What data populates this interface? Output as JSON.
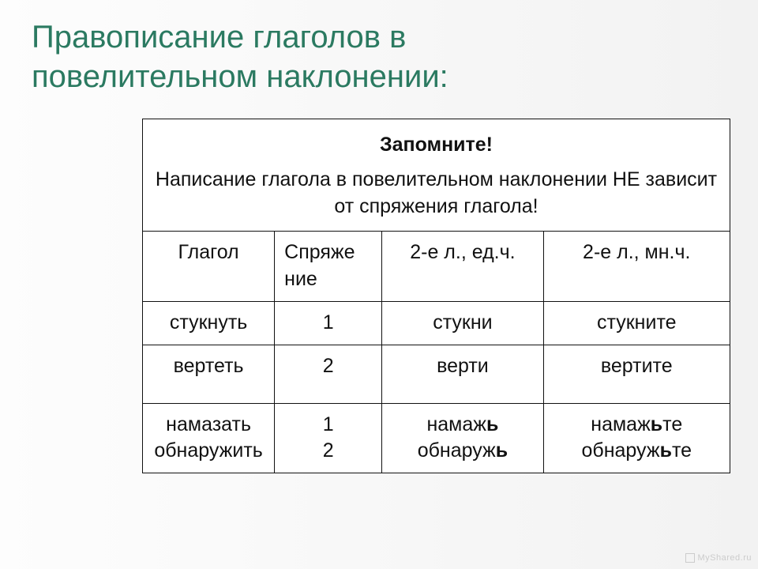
{
  "title_line1": "Правописание глаголов в",
  "title_line2": "повелительном наклонении:",
  "header_top": "Запомните!",
  "header_sub": "Написание глагола в повелительном наклонении НЕ зависит от спряжения глагола!",
  "columns": {
    "verb": "Глагол",
    "conj_line1": "Спряже",
    "conj_line2": "ние",
    "sg": "2-е л., ед.ч.",
    "pl": "2-е л., мн.ч."
  },
  "rows": [
    {
      "verb": "стукнуть",
      "conj": "1",
      "sg": "стукни",
      "pl": "стукните",
      "tall": false
    },
    {
      "verb": "вертеть",
      "conj": "2",
      "sg": "верти",
      "pl": "вертите",
      "tall": true
    }
  ],
  "last_row": {
    "verb1": "намазать",
    "verb2": "обнаружить",
    "conj1": "1",
    "conj2": "2",
    "sg1_pre": "намаж",
    "sg1_b": "ь",
    "sg1_post": "",
    "sg2_pre": "обнаруж",
    "sg2_b": "ь",
    "sg2_post": "",
    "pl1_pre": "намаж",
    "pl1_b": "ь",
    "pl1_post": "те",
    "pl2_pre": "обнаруж",
    "pl2_b": "ь",
    "pl2_post": "те"
  },
  "watermark": "MyShared.ru",
  "colors": {
    "title": "#2b7a61",
    "text": "#111111",
    "border": "#111111",
    "bg": "#fdfdfd"
  },
  "font_sizes": {
    "title": 40,
    "table": 25,
    "watermark": 11
  }
}
